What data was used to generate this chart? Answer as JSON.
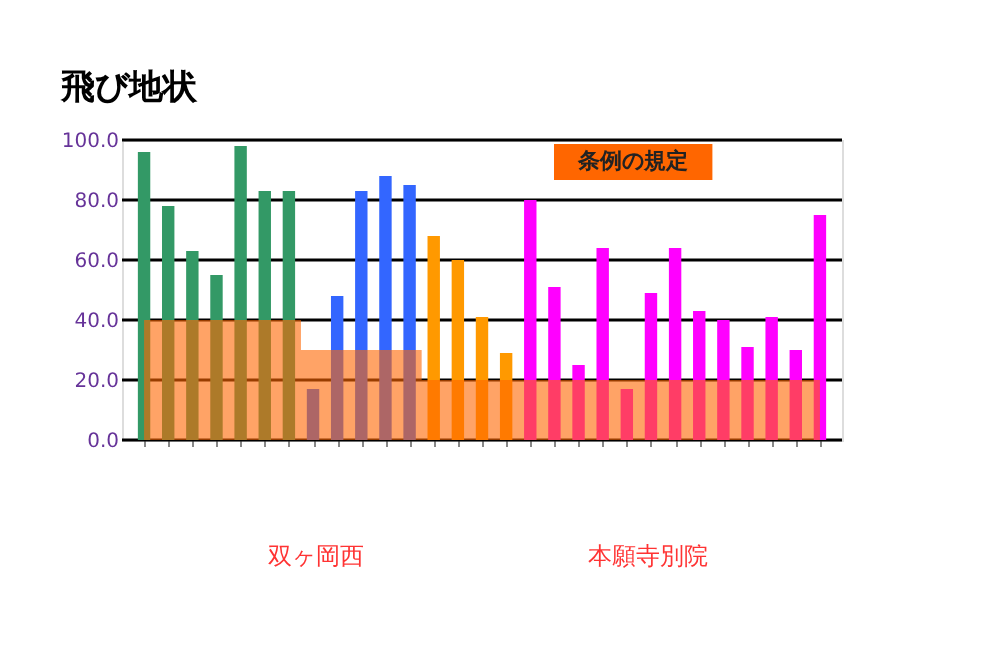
{
  "chart_data": {
    "type": "bar",
    "title": "飛び地状",
    "categories": [
      null,
      null,
      null,
      null,
      null,
      null,
      null,
      null,
      null,
      null,
      null,
      null,
      null,
      null,
      null,
      null,
      null,
      null,
      null,
      null,
      null,
      null,
      null,
      null,
      null,
      null,
      null,
      null,
      null
    ],
    "series": [
      {
        "type": "area",
        "name": "条例の規定",
        "color": "#ff6600",
        "values": [
          40,
          40,
          40,
          40,
          40,
          40,
          40,
          30,
          30,
          30,
          30,
          30,
          20,
          20,
          20,
          20,
          20,
          20,
          20,
          20,
          20,
          20,
          20,
          20,
          20,
          20,
          20,
          20,
          20
        ]
      },
      {
        "values": [
          96,
          78,
          63,
          55,
          98,
          83,
          83,
          17,
          48,
          83,
          88,
          85,
          68,
          60,
          41,
          29,
          80,
          51,
          25,
          64,
          17,
          49,
          64,
          43,
          40,
          31,
          41,
          30,
          75
        ],
        "colors": [
          "#339966",
          "#339966",
          "#339966",
          "#339966",
          "#339966",
          "#339966",
          "#339966",
          "#3366ff",
          "#3366ff",
          "#3366ff",
          "#3366ff",
          "#3366ff",
          "#ff9900",
          "#ff9900",
          "#ff9900",
          "#ff9900",
          "#ff00ff",
          "#ff00ff",
          "#ff00ff",
          "#ff00ff",
          "#ff00ff",
          "#ff00ff",
          "#ff00ff",
          "#ff00ff",
          "#ff00ff",
          "#ff00ff",
          "#ff00ff",
          "#ff00ff",
          "#ff00ff"
        ]
      }
    ],
    "ylim": [
      0,
      100
    ],
    "yticks": [
      {
        "value": 0,
        "label": "0.0"
      },
      {
        "value": 20,
        "label": "20.0"
      },
      {
        "value": 40,
        "label": "40.0"
      },
      {
        "value": 60,
        "label": "60.0"
      },
      {
        "value": 80,
        "label": "80.0"
      },
      {
        "value": 100,
        "label": "100.0"
      }
    ],
    "grid": "y",
    "legend": false,
    "annotations": [
      "双ヶ岡西",
      "本願寺別院"
    ]
  }
}
